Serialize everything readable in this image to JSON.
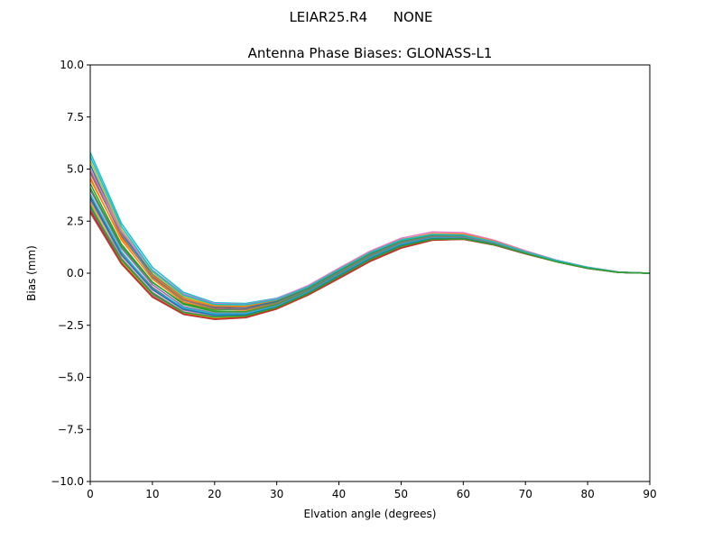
{
  "suptitle": "LEIAR25.R4      NONE",
  "chart_data": {
    "type": "line",
    "title": "Antenna Phase Biases: GLONASS-L1",
    "xlabel": "Elvation angle (degrees)",
    "ylabel": "Bias (mm)",
    "xlim": [
      0,
      90
    ],
    "ylim": [
      -10,
      10
    ],
    "xticks": [
      0,
      10,
      20,
      30,
      40,
      50,
      60,
      70,
      80,
      90
    ],
    "xtick_labels": [
      "0",
      "10",
      "20",
      "30",
      "40",
      "50",
      "60",
      "70",
      "80",
      "90"
    ],
    "yticks": [
      10,
      7.5,
      5,
      2.5,
      0,
      -2.5,
      -5,
      -7.5,
      -10
    ],
    "ytick_labels": [
      "10.0",
      "7.5",
      "5.0",
      "2.5",
      "0.0",
      "−2.5",
      "−5.0",
      "−7.5",
      "−10.0"
    ],
    "grid": false,
    "legend": "none",
    "x": [
      0,
      5,
      10,
      15,
      20,
      25,
      30,
      35,
      40,
      45,
      50,
      55,
      60,
      65,
      70,
      75,
      80,
      85,
      90
    ],
    "series": [
      {
        "color": "#17becf",
        "values": [
          5.8,
          2.4,
          0.28,
          -0.92,
          -1.42,
          -1.45,
          -1.2,
          -0.62,
          0.2,
          1.02,
          1.62,
          1.88,
          1.85,
          1.52,
          1.05,
          0.62,
          0.28,
          0.05,
          0.0
        ]
      },
      {
        "color": "#bcbd22",
        "values": [
          5.4,
          2.1,
          0.05,
          -1.12,
          -1.55,
          -1.58,
          -1.3,
          -0.7,
          0.14,
          0.95,
          1.56,
          1.82,
          1.8,
          1.48,
          1.02,
          0.6,
          0.27,
          0.05,
          0.0
        ]
      },
      {
        "color": "#1f77b4",
        "values": [
          5.2,
          1.95,
          -0.05,
          -1.2,
          -1.62,
          -1.65,
          -1.35,
          -0.74,
          0.1,
          0.92,
          1.53,
          1.8,
          1.78,
          1.47,
          1.01,
          0.6,
          0.27,
          0.05,
          0.0
        ]
      },
      {
        "color": "#d62728",
        "values": [
          4.9,
          1.8,
          -0.15,
          -1.28,
          -1.68,
          -1.72,
          -1.4,
          -0.78,
          0.06,
          0.88,
          1.5,
          1.78,
          1.76,
          1.45,
          1.0,
          0.59,
          0.26,
          0.05,
          0.0
        ]
      },
      {
        "color": "#ff7f0e",
        "values": [
          4.6,
          1.6,
          -0.28,
          -1.38,
          -1.75,
          -1.78,
          -1.45,
          -0.82,
          0.02,
          0.84,
          1.47,
          1.75,
          1.74,
          1.44,
          0.99,
          0.58,
          0.26,
          0.05,
          0.0
        ]
      },
      {
        "color": "#2ca02c",
        "values": [
          4.3,
          1.4,
          -0.42,
          -1.5,
          -1.85,
          -1.85,
          -1.5,
          -0.86,
          -0.02,
          0.8,
          1.43,
          1.73,
          1.72,
          1.42,
          0.98,
          0.57,
          0.25,
          0.04,
          0.0
        ]
      },
      {
        "color": "#9467bd",
        "values": [
          4.0,
          1.2,
          -0.55,
          -1.6,
          -1.92,
          -1.92,
          -1.55,
          -0.9,
          -0.06,
          0.76,
          1.4,
          1.7,
          1.7,
          1.41,
          0.97,
          0.57,
          0.25,
          0.04,
          0.0
        ]
      },
      {
        "color": "#8c564b",
        "values": [
          3.7,
          1.0,
          -0.68,
          -1.7,
          -2.0,
          -1.98,
          -1.6,
          -0.94,
          -0.1,
          0.72,
          1.36,
          1.67,
          1.68,
          1.39,
          0.96,
          0.56,
          0.24,
          0.04,
          0.0
        ]
      },
      {
        "color": "#e377c2",
        "values": [
          3.5,
          0.85,
          -0.8,
          -1.78,
          -2.06,
          -2.02,
          -1.63,
          -0.97,
          -0.14,
          0.68,
          1.32,
          1.64,
          1.66,
          1.38,
          0.95,
          0.56,
          0.24,
          0.04,
          0.0
        ]
      },
      {
        "color": "#7f7f7f",
        "values": [
          3.3,
          0.72,
          -0.92,
          -1.86,
          -2.12,
          -2.06,
          -1.66,
          -1.0,
          -0.18,
          0.64,
          1.28,
          1.62,
          1.65,
          1.37,
          0.94,
          0.55,
          0.24,
          0.04,
          0.0
        ]
      },
      {
        "color": "#9467bd",
        "values": [
          3.1,
          0.58,
          -1.05,
          -1.94,
          -2.18,
          -2.1,
          -1.7,
          -1.03,
          -0.22,
          0.6,
          1.24,
          1.6,
          1.64,
          1.36,
          0.94,
          0.55,
          0.23,
          0.04,
          0.0
        ]
      },
      {
        "color": "#8c564b",
        "values": [
          2.9,
          0.45,
          -1.15,
          -1.98,
          -2.22,
          -2.14,
          -1.72,
          -1.06,
          -0.26,
          0.56,
          1.2,
          1.58,
          1.63,
          1.35,
          0.93,
          0.55,
          0.23,
          0.04,
          0.0
        ]
      },
      {
        "color": "#bcbd22",
        "values": [
          3.4,
          0.6,
          -1.1,
          -1.95,
          -2.15,
          -2.1,
          -1.71,
          -1.04,
          -0.2,
          0.62,
          1.26,
          1.61,
          1.64,
          1.36,
          0.94,
          0.55,
          0.24,
          0.04,
          0.0
        ]
      },
      {
        "color": "#17becf",
        "values": [
          3.8,
          1.05,
          -0.75,
          -1.66,
          -1.96,
          -1.95,
          -1.58,
          -0.92,
          -0.08,
          0.74,
          1.38,
          1.69,
          1.69,
          1.4,
          0.97,
          0.56,
          0.25,
          0.04,
          0.0
        ]
      },
      {
        "color": "#e377c2",
        "values": [
          5.0,
          2.0,
          0.15,
          -1.0,
          -1.46,
          -1.5,
          -1.22,
          -0.6,
          0.24,
          1.06,
          1.68,
          1.98,
          1.95,
          1.58,
          1.08,
          0.63,
          0.29,
          0.06,
          0.0
        ]
      },
      {
        "color": "#ff7f0e",
        "values": [
          4.5,
          1.7,
          -0.1,
          -1.22,
          -1.58,
          -1.6,
          -1.28,
          -0.66,
          0.18,
          1.0,
          1.6,
          1.9,
          1.88,
          1.53,
          1.04,
          0.61,
          0.28,
          0.05,
          0.0
        ]
      },
      {
        "color": "#2ca02c",
        "values": [
          4.1,
          1.3,
          -0.45,
          -1.45,
          -1.78,
          -1.74,
          -1.4,
          -0.76,
          0.08,
          0.9,
          1.52,
          1.8,
          1.79,
          1.47,
          1.0,
          0.59,
          0.26,
          0.05,
          0.0
        ]
      },
      {
        "color": "#1f77b4",
        "values": [
          3.6,
          0.9,
          -0.78,
          -1.74,
          -2.02,
          -2.0,
          -1.62,
          -0.96,
          -0.12,
          0.7,
          1.34,
          1.66,
          1.67,
          1.39,
          0.96,
          0.56,
          0.24,
          0.04,
          0.0
        ]
      },
      {
        "color": "#d62728",
        "values": [
          3.0,
          0.5,
          -1.12,
          -1.96,
          -2.2,
          -2.12,
          -1.71,
          -1.05,
          -0.24,
          0.58,
          1.22,
          1.59,
          1.63,
          1.35,
          0.93,
          0.55,
          0.23,
          0.04,
          0.0
        ]
      },
      {
        "color": "#7f7f7f",
        "values": [
          4.8,
          1.85,
          -0.2,
          -1.3,
          -1.7,
          -1.74,
          -1.42,
          -0.8,
          0.04,
          0.86,
          1.48,
          1.77,
          1.75,
          1.45,
          1.0,
          0.59,
          0.26,
          0.05,
          0.0
        ]
      },
      {
        "color": "#17becf",
        "values": [
          5.6,
          2.25,
          0.12,
          -1.05,
          -1.5,
          -1.52,
          -1.26,
          -0.66,
          0.17,
          0.99,
          1.59,
          1.86,
          1.83,
          1.5,
          1.03,
          0.61,
          0.28,
          0.05,
          0.0
        ]
      },
      {
        "color": "#2ca02c",
        "values": [
          3.2,
          0.65,
          -0.98,
          -1.88,
          -2.1,
          -2.05,
          -1.65,
          -0.99,
          -0.17,
          0.65,
          1.29,
          1.63,
          1.65,
          1.37,
          0.95,
          0.55,
          0.24,
          0.04,
          0.0
        ]
      }
    ]
  }
}
